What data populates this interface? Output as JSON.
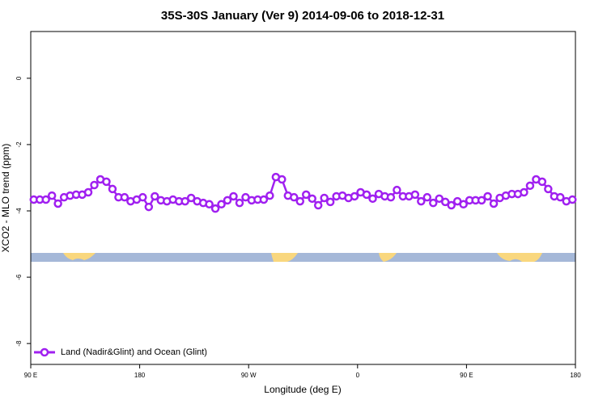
{
  "chart_data": {
    "type": "line",
    "title": "35S-30S January (Ver 9)   2014-09-06 to 2018-12-31",
    "x_label": "Longitude (deg E)",
    "y_label": "XCO2 - MLO trend (ppm)",
    "x": [
      92.5,
      97.5,
      102.5,
      107.5,
      112.5,
      117.5,
      122.5,
      127.5,
      132.5,
      137.5,
      142.5,
      147.5,
      152.5,
      157.5,
      162.5,
      167.5,
      172.5,
      177.5,
      182.5,
      187.5,
      192.5,
      197.5,
      202.5,
      207.5,
      212.5,
      217.5,
      222.5,
      227.5,
      232.5,
      237.5,
      242.5,
      247.5,
      252.5,
      257.5,
      262.5,
      267.5,
      272.5,
      277.5,
      282.5,
      287.5,
      292.5,
      297.5,
      302.5,
      307.5,
      312.5,
      317.5,
      322.5,
      327.5,
      332.5,
      337.5,
      342.5,
      347.5,
      352.5,
      357.5,
      362.5,
      367.5,
      372.5,
      377.5,
      382.5,
      387.5,
      392.5,
      397.5,
      402.5,
      407.5,
      412.5,
      417.5,
      422.5,
      427.5,
      432.5,
      437.5,
      442.5,
      447.5,
      452.5,
      457.5,
      462.5,
      467.5,
      472.5,
      477.5,
      482.5,
      487.5,
      492.5,
      497.5,
      502.5,
      507.5,
      512.5,
      517.5,
      522.5,
      527.5,
      532.5,
      537.5
    ],
    "series": [
      {
        "name": "Land (Nadir&Glint) and Ocean (Glint)",
        "color": "#a020f0",
        "values": [
          -3.66,
          -3.66,
          -3.66,
          -3.54,
          -3.78,
          -3.59,
          -3.54,
          -3.51,
          -3.51,
          -3.44,
          -3.22,
          -3.05,
          -3.12,
          -3.34,
          -3.59,
          -3.59,
          -3.71,
          -3.66,
          -3.59,
          -3.88,
          -3.56,
          -3.68,
          -3.71,
          -3.66,
          -3.71,
          -3.71,
          -3.61,
          -3.71,
          -3.76,
          -3.8,
          -3.93,
          -3.8,
          -3.68,
          -3.56,
          -3.76,
          -3.59,
          -3.68,
          -3.66,
          -3.66,
          -3.54,
          -2.98,
          -3.05,
          -3.54,
          -3.59,
          -3.71,
          -3.51,
          -3.63,
          -3.83,
          -3.61,
          -3.73,
          -3.56,
          -3.54,
          -3.61,
          -3.56,
          -3.44,
          -3.51,
          -3.63,
          -3.49,
          -3.56,
          -3.59,
          -3.37,
          -3.56,
          -3.56,
          -3.51,
          -3.71,
          -3.59,
          -3.76,
          -3.63,
          -3.73,
          -3.83,
          -3.71,
          -3.8,
          -3.68,
          -3.68,
          -3.68,
          -3.56,
          -3.78,
          -3.61,
          -3.54,
          -3.49,
          -3.49,
          -3.44,
          -3.24,
          -3.05,
          -3.12,
          -3.34,
          -3.56,
          -3.59,
          -3.71,
          -3.66
        ]
      }
    ],
    "xlim": [
      90,
      540
    ],
    "xticks": [
      {
        "value": 90,
        "label": "90 E"
      },
      180,
      {
        "value": 270,
        "label": "90 W"
      },
      {
        "value": 360,
        "label": "0"
      },
      {
        "value": 450,
        "label": "90 E"
      },
      {
        "value": 540,
        "label": "180"
      }
    ],
    "ylim": [
      -8.63,
      1.41
    ],
    "yticks": [
      0,
      -2,
      -4,
      -6,
      -8
    ],
    "legend": "bottom-left"
  }
}
